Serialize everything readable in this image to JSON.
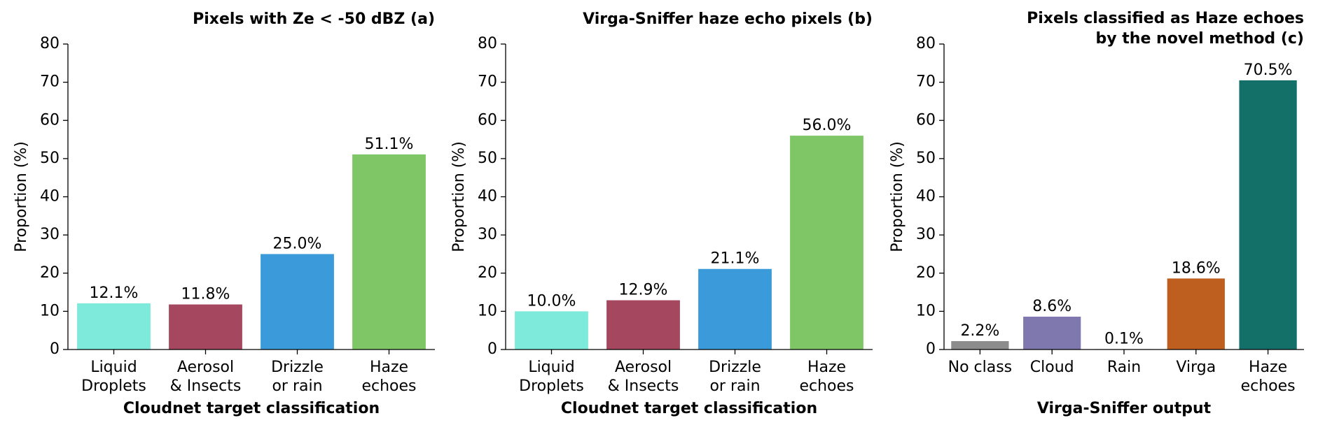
{
  "chart_data": [
    {
      "type": "bar",
      "title": "Pixels with Ze < -50 dBZ (a)",
      "xlabel": "Cloudnet target classification",
      "ylabel": "Proportion (%)",
      "categories": [
        "Liquid\nDroplets",
        "Aerosol\n& Insects",
        "Drizzle\nor rain",
        "Haze\nechoes"
      ],
      "values": [
        12.1,
        11.8,
        25.0,
        51.1
      ],
      "value_labels": [
        "12.1%",
        "11.8%",
        "25.0%",
        "51.1%"
      ],
      "colors": [
        "#7eeadb",
        "#a5475e",
        "#3b9ad9",
        "#7ec666"
      ],
      "ylim": [
        0,
        80
      ],
      "yticks": [
        0,
        10,
        20,
        30,
        40,
        50,
        60,
        70,
        80
      ]
    },
    {
      "type": "bar",
      "title": "Virga-Sniffer haze echo pixels (b)",
      "xlabel": "Cloudnet target classification",
      "ylabel": "Proportion (%)",
      "categories": [
        "Liquid\nDroplets",
        "Aerosol\n& Insects",
        "Drizzle\nor rain",
        "Haze\nechoes"
      ],
      "values": [
        10.0,
        12.9,
        21.1,
        56.0
      ],
      "value_labels": [
        "10.0%",
        "12.9%",
        "21.1%",
        "56.0%"
      ],
      "colors": [
        "#7eeadb",
        "#a5475e",
        "#3b9ad9",
        "#7ec666"
      ],
      "ylim": [
        0,
        80
      ],
      "yticks": [
        0,
        10,
        20,
        30,
        40,
        50,
        60,
        70,
        80
      ]
    },
    {
      "type": "bar",
      "title": "Pixels classified as Haze echoes\nby the novel method (c)",
      "xlabel": "Virga-Sniffer output",
      "ylabel": "Proportion (%)",
      "categories": [
        "No class",
        "Cloud",
        "Rain",
        "Virga",
        "Haze\nechoes"
      ],
      "values": [
        2.2,
        8.6,
        0.1,
        18.6,
        70.5
      ],
      "value_labels": [
        "2.2%",
        "8.6%",
        "0.1%",
        "18.6%",
        "70.5%"
      ],
      "colors": [
        "#8c8c8c",
        "#7f78ae",
        "#3b5fa0",
        "#bf5f1f",
        "#137068"
      ],
      "ylim": [
        0,
        80
      ],
      "yticks": [
        0,
        10,
        20,
        30,
        40,
        50,
        60,
        70,
        80
      ]
    }
  ]
}
